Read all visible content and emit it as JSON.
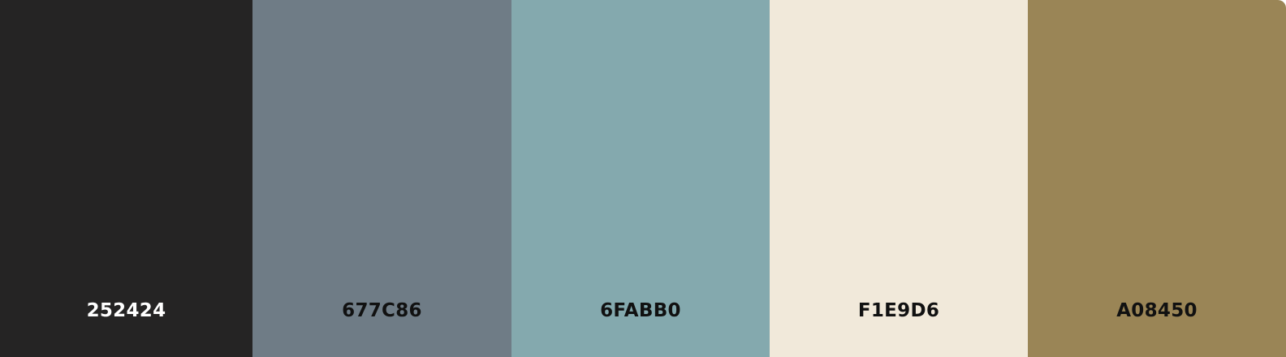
{
  "palette": {
    "swatches": [
      {
        "label": "252424",
        "color": "#252424",
        "text_color": "#ffffff"
      },
      {
        "label": "677C86",
        "color": "#6F7C86",
        "text_color": "#111111"
      },
      {
        "label": "6FABB0",
        "color": "#84A9AE",
        "text_color": "#111111"
      },
      {
        "label": "F1E9D6",
        "color": "#F1E9DA",
        "text_color": "#111111"
      },
      {
        "label": "A08450",
        "color": "#9A8556",
        "text_color": "#111111"
      }
    ]
  }
}
